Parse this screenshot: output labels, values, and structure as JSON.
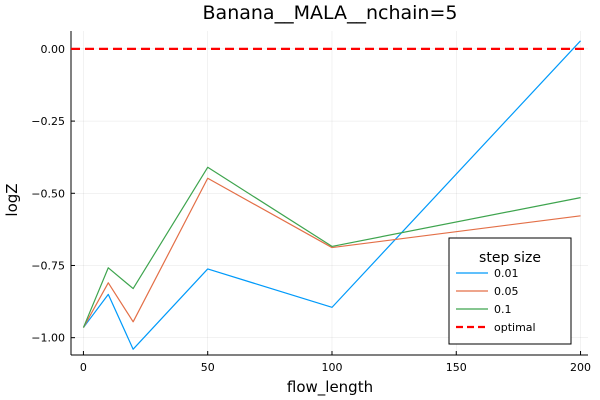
{
  "chart_data": {
    "type": "line",
    "title": "Banana__MALA__nchain=5",
    "xlabel": "flow_length",
    "ylabel": "logZ",
    "xlim": [
      -5,
      203
    ],
    "ylim": [
      -1.06,
      0.062
    ],
    "xticks": [
      0,
      50,
      100,
      150,
      200
    ],
    "xtick_labels": [
      "0",
      "50",
      "100",
      "150",
      "200"
    ],
    "yticks": [
      -1.0,
      -0.75,
      -0.5,
      -0.25,
      0.0
    ],
    "ytick_labels": [
      "−1.00",
      "−0.75",
      "−0.50",
      "−0.25",
      "0.00"
    ],
    "grid": true,
    "legend_title": "step size",
    "legend_position": "bottom-right",
    "x": [
      0,
      10,
      20,
      50,
      100,
      200
    ],
    "series": [
      {
        "name": "0.01",
        "color": "#009AFA",
        "values": [
          -0.965,
          -0.85,
          -1.04,
          -0.762,
          -0.895,
          0.028
        ]
      },
      {
        "name": "0.05",
        "color": "#E36F47",
        "values": [
          -0.965,
          -0.81,
          -0.945,
          -0.448,
          -0.688,
          -0.578
        ]
      },
      {
        "name": "0.1",
        "color": "#3EA44E",
        "values": [
          -0.965,
          -0.758,
          -0.83,
          -0.41,
          -0.684,
          -0.515
        ]
      }
    ],
    "reference_line": {
      "name": "optimal",
      "color": "#FF0000",
      "value": 0.0,
      "style": "dashed"
    }
  }
}
